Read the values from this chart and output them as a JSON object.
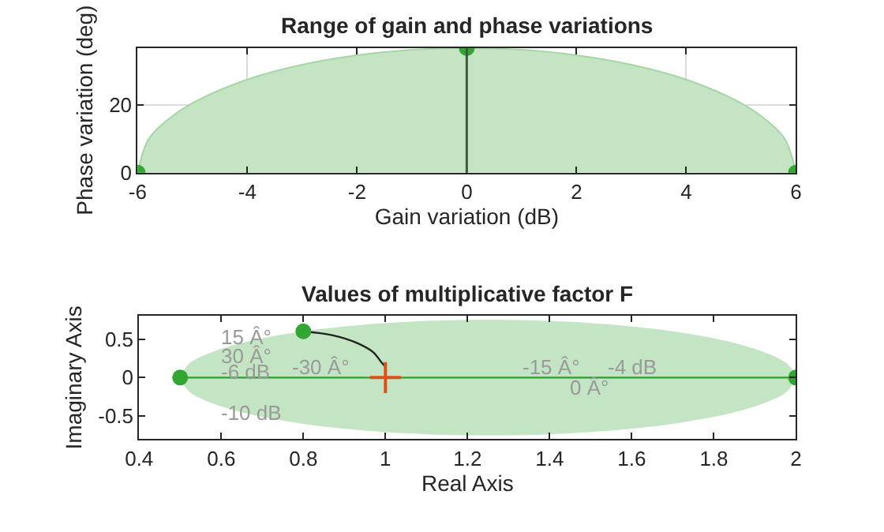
{
  "chart_data": [
    {
      "type": "area",
      "title": "Range of gain and phase variations",
      "xlabel": "Gain variation (dB)",
      "ylabel": "Phase variation (deg)",
      "xlim": [
        -6,
        6
      ],
      "xticks": [
        -6,
        -4,
        -2,
        0,
        2,
        4,
        6
      ],
      "ylim": [
        0,
        37
      ],
      "yticks": [
        0,
        20
      ],
      "grid": true,
      "ref_lines": [
        {
          "axis": "x",
          "value": 0,
          "color": "#3d5c3d"
        }
      ],
      "series": [
        {
          "color": "#c4e4c4",
          "x": [
            -6,
            -5.8,
            -5.5,
            -5,
            -4,
            -3,
            -2,
            -1,
            0,
            1,
            2,
            3,
            4,
            5,
            5.5,
            5.8,
            6
          ],
          "values": [
            0,
            9.9,
            15.0,
            20.6,
            27.6,
            32.0,
            34.8,
            36.4,
            36.9,
            36.4,
            34.8,
            32.0,
            27.6,
            20.6,
            15.0,
            9.9,
            0
          ]
        },
        {
          "type": "scatter",
          "color": "#33a532",
          "marker": "circle",
          "x": [
            -6,
            0,
            6
          ],
          "values": [
            0,
            36.9,
            0
          ]
        }
      ]
    },
    {
      "type": "line",
      "title": "Values of multiplicative factor F",
      "xlabel": "Real Axis",
      "ylabel": "Imaginary Axis",
      "xlim": [
        0.4,
        2
      ],
      "xticks": [
        0.4,
        0.6,
        0.8,
        1,
        1.2,
        1.4,
        1.6,
        1.8,
        2
      ],
      "ylim": [
        -0.8,
        0.8
      ],
      "yticks": [
        -0.5,
        0,
        0.5
      ],
      "grid": false,
      "annotations": [
        "15 Â°",
        "30 Â°",
        "-6 dB",
        "-30 Â°",
        "-10 dB",
        "-15 Â°",
        "-4 dB",
        "0 Â°"
      ],
      "series": [
        {
          "color": "#2ca02c",
          "x": [
            0.5,
            0.52,
            0.56,
            0.65,
            0.8,
            0.95,
            1.1,
            1.25,
            1.4,
            1.55,
            1.7,
            1.85,
            1.94,
            1.98,
            2
          ],
          "values": [
            0,
            0,
            0,
            0,
            0,
            0,
            0,
            0,
            0,
            0,
            0,
            0,
            0,
            0,
            0
          ],
          "lower": [
            0,
            -0.172,
            -0.294,
            -0.45,
            -0.6,
            -0.687,
            -0.735,
            -0.75,
            -0.735,
            -0.687,
            -0.6,
            -0.45,
            -0.294,
            -0.172,
            0
          ],
          "upper": [
            0,
            0.172,
            0.294,
            0.45,
            0.6,
            0.687,
            0.735,
            0.75,
            0.735,
            0.687,
            0.6,
            0.45,
            0.294,
            0.172,
            0
          ]
        },
        {
          "color": "#222222",
          "x": [
            0.8,
            0.87,
            0.93,
            0.97,
            0.99,
            0.998
          ],
          "values": [
            0.6,
            0.55,
            0.45,
            0.33,
            0.2,
            0.15
          ]
        },
        {
          "type": "scatter",
          "color": "#33a532",
          "marker": "circle",
          "x": [
            0.5,
            0.8,
            2
          ],
          "values": [
            0,
            0.6,
            0
          ]
        },
        {
          "type": "scatter",
          "color": "#d95319",
          "marker": "cross",
          "x": [
            1
          ],
          "values": [
            0
          ]
        }
      ]
    }
  ]
}
